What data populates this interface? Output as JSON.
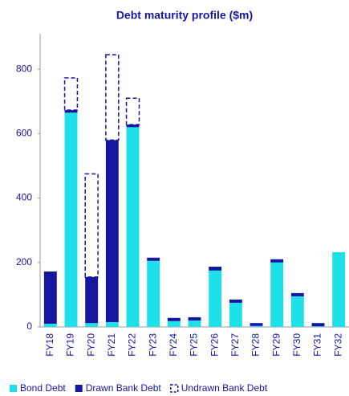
{
  "chart_data": {
    "type": "stacked-bar",
    "title": "Debt maturity profile ($m)",
    "categories": [
      "FY18",
      "FY19",
      "FY20",
      "FY21",
      "FY22",
      "FY23",
      "FY24",
      "FY25",
      "FY26",
      "FY27",
      "FY28",
      "FY29",
      "FY30",
      "FY31",
      "FY32"
    ],
    "series": [
      {
        "name": "Bond Debt",
        "color": "#1ee0e8",
        "style": "solid",
        "values": [
          10,
          665,
          12,
          15,
          620,
          205,
          18,
          20,
          175,
          75,
          3,
          200,
          95,
          2,
          232
        ]
      },
      {
        "name": "Drawn Bank Debt",
        "color": "#1616a0",
        "style": "solid",
        "values": [
          162,
          8,
          143,
          565,
          8,
          10,
          10,
          10,
          12,
          10,
          9,
          10,
          10,
          10,
          0
        ]
      },
      {
        "name": "Undrawn Bank Debt",
        "color": "#1616a0",
        "style": "dashed",
        "values": [
          0,
          100,
          320,
          265,
          82,
          0,
          0,
          0,
          0,
          0,
          0,
          0,
          0,
          0,
          0
        ]
      }
    ],
    "ylim": [
      0,
      910
    ],
    "yticks": [
      0,
      200,
      400,
      600,
      800
    ],
    "grid": false,
    "legend": "bottom"
  }
}
